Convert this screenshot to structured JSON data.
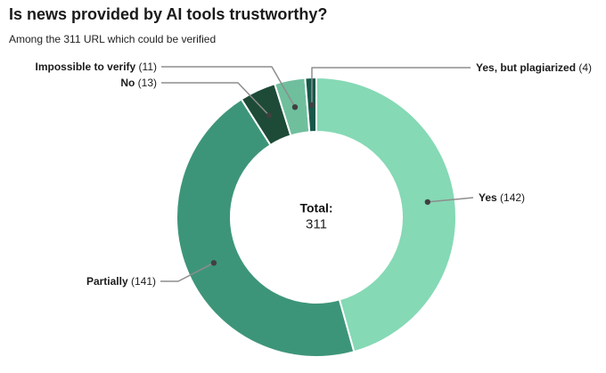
{
  "chart_data": {
    "type": "pie",
    "donut": true,
    "inner_radius_ratio": 0.61,
    "title": "Is news provided by AI tools trustworthy?",
    "subtitle": "Among the 311 URL which could be verified",
    "center_label": "Total:",
    "center_value": "311",
    "total": 311,
    "start_angle_deg": 0,
    "direction": "clockwise",
    "legend": "none",
    "leader_line_color": "#8d8d8d",
    "leader_dot_color": "#404040",
    "label_text_color": "#1b1b1b",
    "segments": [
      {
        "label": "Yes",
        "value": 142,
        "color": "#85d9b5"
      },
      {
        "label": "Partially",
        "value": 141,
        "color": "#3d9579"
      },
      {
        "label": "No",
        "value": 13,
        "color": "#1d4b37"
      },
      {
        "label": "Impossible to verify",
        "value": 11,
        "color": "#6fbf9d"
      },
      {
        "label": "Yes, but plagiarized",
        "value": 4,
        "color": "#17584a"
      }
    ]
  }
}
